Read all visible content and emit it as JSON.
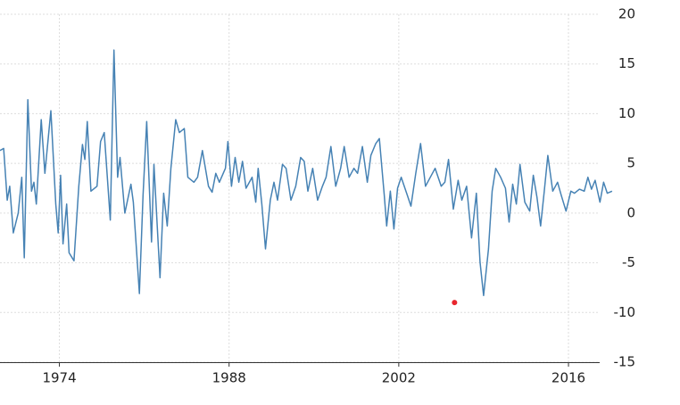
{
  "chart_data": {
    "type": "line",
    "x": [
      1969.1,
      1969.4,
      1969.7,
      1969.9,
      1970.2,
      1970.6,
      1970.9,
      1971.1,
      1971.4,
      1971.7,
      1971.9,
      1972.1,
      1972.5,
      1972.8,
      1973.3,
      1973.7,
      1973.9,
      1974.1,
      1974.3,
      1974.6,
      1974.8,
      1975.2,
      1975.6,
      1975.9,
      1976.1,
      1976.3,
      1976.6,
      1977.1,
      1977.4,
      1977.7,
      1978.2,
      1978.5,
      1978.8,
      1979.0,
      1979.4,
      1979.9,
      1980.1,
      1980.6,
      1980.9,
      1981.2,
      1981.6,
      1981.8,
      1982.3,
      1982.6,
      1982.9,
      1983.2,
      1983.6,
      1983.9,
      1984.3,
      1984.6,
      1985.1,
      1985.4,
      1985.8,
      1986.3,
      1986.6,
      1986.9,
      1987.2,
      1987.7,
      1987.9,
      1988.2,
      1988.5,
      1988.8,
      1989.1,
      1989.4,
      1989.9,
      1990.2,
      1990.4,
      1990.7,
      1991.0,
      1991.4,
      1991.7,
      1992.0,
      1992.4,
      1992.7,
      1993.1,
      1993.5,
      1993.9,
      1994.2,
      1994.5,
      1994.9,
      1995.3,
      1995.7,
      1996.0,
      1996.4,
      1996.8,
      1997.2,
      1997.5,
      1997.9,
      1998.3,
      1998.6,
      1999.0,
      1999.4,
      1999.7,
      2000.1,
      2000.4,
      2000.8,
      2001.0,
      2001.3,
      2001.6,
      2001.9,
      2002.2,
      2002.7,
      2003.0,
      2003.4,
      2003.8,
      2004.2,
      2004.6,
      2005.0,
      2005.5,
      2005.8,
      2006.1,
      2006.5,
      2006.9,
      2007.2,
      2007.6,
      2008.0,
      2008.4,
      2008.7,
      2009.0,
      2009.4,
      2009.7,
      2010.0,
      2010.4,
      2010.8,
      2011.1,
      2011.4,
      2011.7,
      2012.0,
      2012.4,
      2012.8,
      2013.1,
      2013.4,
      2013.7,
      2014.0,
      2014.3,
      2014.7,
      2015.1,
      2015.4,
      2015.8,
      2016.2,
      2016.5,
      2016.9,
      2017.3,
      2017.6,
      2017.9,
      2018.2,
      2018.6,
      2018.9,
      2019.2,
      2019.6
    ],
    "series": [
      {
        "color": "#4682b4",
        "values": [
          6.3,
          6.5,
          1.3,
          2.7,
          -2.0,
          0,
          3.6,
          -4.5,
          11.4,
          2.2,
          3.1,
          0.9,
          9.4,
          4.0,
          10.3,
          0.9,
          -2.0,
          3.8,
          -3.1,
          0.9,
          -4.0,
          -4.8,
          2.7,
          6.9,
          5.4,
          9.2,
          2.2,
          2.7,
          7.2,
          8.1,
          -0.7,
          16.4,
          3.6,
          5.6,
          0,
          2.9,
          1.1,
          -8.1,
          1.8,
          9.2,
          -2.9,
          4.9,
          -6.5,
          2.0,
          -1.3,
          4.5,
          9.4,
          8.1,
          8.5,
          3.6,
          3.1,
          3.6,
          6.3,
          2.7,
          2.1,
          4.0,
          3.1,
          4.5,
          7.2,
          2.7,
          5.6,
          3.1,
          5.2,
          2.5,
          3.6,
          1.1,
          4.5,
          0.9,
          -3.6,
          1.3,
          3.1,
          1.3,
          4.9,
          4.5,
          1.3,
          2.7,
          5.6,
          5.2,
          2.2,
          4.5,
          1.3,
          2.7,
          3.6,
          6.7,
          2.7,
          4.5,
          6.7,
          3.6,
          4.5,
          4.0,
          6.7,
          3.1,
          5.8,
          7.0,
          7.5,
          1.8,
          -1.3,
          2.2,
          -1.6,
          2.5,
          3.6,
          1.8,
          0.7,
          4.0,
          7.0,
          2.7,
          3.6,
          4.5,
          2.7,
          3.1,
          5.4,
          0.4,
          3.3,
          1.3,
          2.7,
          -2.5,
          2.0,
          -4.9,
          -8.3,
          -3.6,
          2.2,
          4.5,
          3.6,
          2.5,
          -0.9,
          2.9,
          0.9,
          4.9,
          1.1,
          0.2,
          3.8,
          1.6,
          -1.3,
          2.2,
          5.8,
          2.2,
          3.1,
          1.8,
          0.2,
          2.2,
          2.0,
          2.4,
          2.2,
          3.6,
          2.4,
          3.3,
          1.1,
          3.1,
          2.0,
          2.2
        ]
      }
    ],
    "points": [
      {
        "x": 2006.6,
        "y": -9,
        "color": "#e8262e"
      }
    ],
    "xlim": [
      1969.1,
      2019.9
    ],
    "xticks": [
      1974,
      1988,
      2002,
      2016
    ],
    "ylim": [
      -15,
      20
    ],
    "yticks": [
      20,
      15,
      10,
      5,
      0,
      -5,
      -10,
      -15
    ],
    "grid": true
  }
}
